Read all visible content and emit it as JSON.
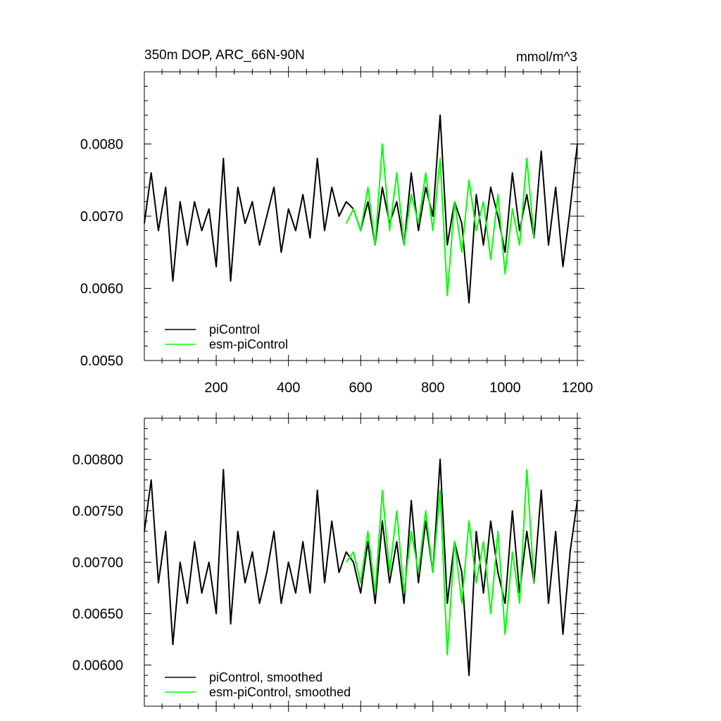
{
  "chart_data": [
    {
      "type": "line",
      "title": "350m DOP, ARC_66N-90N",
      "units": "mmol/m^3",
      "xlim": [
        1,
        1200
      ],
      "ylim": [
        0.005,
        0.009
      ],
      "x_ticks": [
        200,
        400,
        600,
        800,
        1000,
        1200
      ],
      "y_ticks": [
        0.005,
        0.006,
        0.007,
        0.008
      ],
      "y_tick_labels": [
        "0.0050",
        "0.0060",
        "0.0070",
        "0.0080"
      ],
      "legend_position": "bottom-left",
      "series": [
        {
          "name": "piControl",
          "color": "#000000",
          "x": [
            1,
            20,
            40,
            60,
            80,
            100,
            120,
            140,
            160,
            180,
            200,
            220,
            240,
            260,
            280,
            300,
            320,
            340,
            360,
            380,
            400,
            420,
            440,
            460,
            480,
            500,
            520,
            540,
            560,
            580,
            600,
            620,
            640,
            660,
            680,
            700,
            720,
            740,
            760,
            780,
            800,
            820,
            840,
            860,
            880,
            900,
            920,
            940,
            960,
            980,
            1000,
            1020,
            1040,
            1060,
            1080,
            1100,
            1120,
            1140,
            1160,
            1180,
            1200
          ],
          "values": [
            0.0069,
            0.0076,
            0.0068,
            0.0074,
            0.0061,
            0.0072,
            0.0066,
            0.0072,
            0.0068,
            0.0071,
            0.0063,
            0.0078,
            0.0061,
            0.0074,
            0.0069,
            0.0072,
            0.0066,
            0.007,
            0.0074,
            0.0065,
            0.0071,
            0.0068,
            0.0073,
            0.0067,
            0.0078,
            0.0068,
            0.0074,
            0.007,
            0.0072,
            0.0071,
            0.0068,
            0.0072,
            0.0066,
            0.0074,
            0.0069,
            0.0072,
            0.0066,
            0.0076,
            0.0068,
            0.0074,
            0.007,
            0.0084,
            0.0066,
            0.0072,
            0.0069,
            0.0058,
            0.0073,
            0.0066,
            0.0074,
            0.007,
            0.0065,
            0.0076,
            0.0068,
            0.0073,
            0.0067,
            0.0079,
            0.0066,
            0.0074,
            0.0063,
            0.0071,
            0.008
          ]
        },
        {
          "name": "esm-piControl",
          "color": "#00ff00",
          "x": [
            560,
            580,
            600,
            620,
            640,
            660,
            680,
            700,
            720,
            740,
            760,
            780,
            800,
            820,
            840,
            860,
            880,
            900,
            920,
            940,
            960,
            980,
            1000,
            1020,
            1040,
            1060,
            1080
          ],
          "values": [
            0.0069,
            0.0071,
            0.0068,
            0.0074,
            0.0066,
            0.008,
            0.0068,
            0.0076,
            0.0066,
            0.0073,
            0.0069,
            0.0076,
            0.0068,
            0.0078,
            0.0059,
            0.0072,
            0.0065,
            0.0075,
            0.0068,
            0.0072,
            0.0064,
            0.0073,
            0.0062,
            0.0071,
            0.0066,
            0.0078,
            0.0067
          ]
        }
      ]
    },
    {
      "type": "line",
      "xlim": [
        1,
        1200
      ],
      "ylim": [
        0.0056,
        0.0084
      ],
      "y_ticks": [
        0.006,
        0.0065,
        0.007,
        0.0075,
        0.008
      ],
      "y_tick_labels": [
        "0.00600",
        "0.00650",
        "0.00700",
        "0.00750",
        "0.00800"
      ],
      "legend_position": "bottom-left",
      "series": [
        {
          "name": "piControl, smoothed",
          "color": "#000000",
          "x": [
            1,
            20,
            40,
            60,
            80,
            100,
            120,
            140,
            160,
            180,
            200,
            220,
            240,
            260,
            280,
            300,
            320,
            340,
            360,
            380,
            400,
            420,
            440,
            460,
            480,
            500,
            520,
            540,
            560,
            580,
            600,
            620,
            640,
            660,
            680,
            700,
            720,
            740,
            760,
            780,
            800,
            820,
            840,
            860,
            880,
            900,
            920,
            940,
            960,
            980,
            1000,
            1020,
            1040,
            1060,
            1080,
            1100,
            1120,
            1140,
            1160,
            1180,
            1200
          ],
          "values": [
            0.0073,
            0.0078,
            0.0068,
            0.0073,
            0.0062,
            0.007,
            0.0066,
            0.0072,
            0.0067,
            0.007,
            0.0065,
            0.0079,
            0.0064,
            0.0073,
            0.0068,
            0.0071,
            0.0066,
            0.0069,
            0.0073,
            0.0066,
            0.007,
            0.0067,
            0.0072,
            0.0067,
            0.0077,
            0.0068,
            0.0074,
            0.0069,
            0.0071,
            0.007,
            0.0067,
            0.0072,
            0.0066,
            0.0074,
            0.0068,
            0.0072,
            0.0066,
            0.0076,
            0.0068,
            0.0074,
            0.0069,
            0.008,
            0.0066,
            0.0072,
            0.0069,
            0.0059,
            0.0073,
            0.0067,
            0.0074,
            0.0069,
            0.0066,
            0.0075,
            0.0067,
            0.0073,
            0.0068,
            0.0077,
            0.0066,
            0.0073,
            0.0063,
            0.0071,
            0.0076
          ]
        },
        {
          "name": "esm-piControl, smoothed",
          "color": "#00ff00",
          "x": [
            560,
            580,
            600,
            620,
            640,
            660,
            680,
            700,
            720,
            740,
            760,
            780,
            800,
            820,
            840,
            860,
            880,
            900,
            920,
            940,
            960,
            980,
            1000,
            1020,
            1040,
            1060,
            1080
          ],
          "values": [
            0.007,
            0.0071,
            0.0068,
            0.0073,
            0.0067,
            0.0077,
            0.0069,
            0.0075,
            0.0067,
            0.0073,
            0.0069,
            0.0075,
            0.0069,
            0.0077,
            0.0061,
            0.0072,
            0.0066,
            0.0074,
            0.0068,
            0.0072,
            0.0065,
            0.0073,
            0.0063,
            0.0071,
            0.0066,
            0.0079,
            0.0068
          ]
        }
      ]
    }
  ]
}
